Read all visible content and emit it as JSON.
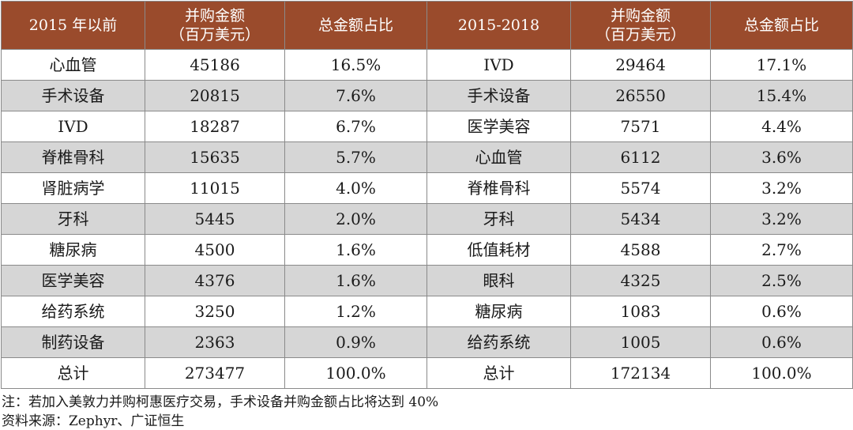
{
  "table": {
    "headers": [
      "2015 年以前",
      "并购金额\n（百万美元）",
      "总金额占比",
      "2015-2018",
      "并购金额\n（百万美元）",
      "总金额占比"
    ],
    "rows": [
      [
        "心血管",
        "45186",
        "16.5%",
        "IVD",
        "29464",
        "17.1%"
      ],
      [
        "手术设备",
        "20815",
        "7.6%",
        "手术设备",
        "26550",
        "15.4%"
      ],
      [
        "IVD",
        "18287",
        "6.7%",
        "医学美容",
        "7571",
        "4.4%"
      ],
      [
        "脊椎骨科",
        "15635",
        "5.7%",
        "心血管",
        "6112",
        "3.6%"
      ],
      [
        "肾脏病学",
        "11015",
        "4.0%",
        "脊椎骨科",
        "5574",
        "3.2%"
      ],
      [
        "牙科",
        "5445",
        "2.0%",
        "牙科",
        "5434",
        "3.2%"
      ],
      [
        "糖尿病",
        "4500",
        "1.6%",
        "低值耗材",
        "4588",
        "2.7%"
      ],
      [
        "医学美容",
        "4376",
        "1.6%",
        "眼科",
        "4325",
        "2.5%"
      ],
      [
        "给药系统",
        "3250",
        "1.2%",
        "糖尿病",
        "1083",
        "0.6%"
      ],
      [
        "制药设备",
        "2363",
        "0.9%",
        "给药系统",
        "1005",
        "0.6%"
      ],
      [
        "总计",
        "273477",
        "100.0%",
        "总计",
        "172134",
        "100.0%"
      ]
    ]
  },
  "notes": {
    "note": "注：若加入美敦力并购柯惠医疗交易，手术设备并购金额占比将达到 40%",
    "source": "资料来源：Zephyr、广证恒生"
  },
  "colors": {
    "header_bg": "#9a4b2c",
    "stripe_bg": "#d6d6d6"
  }
}
